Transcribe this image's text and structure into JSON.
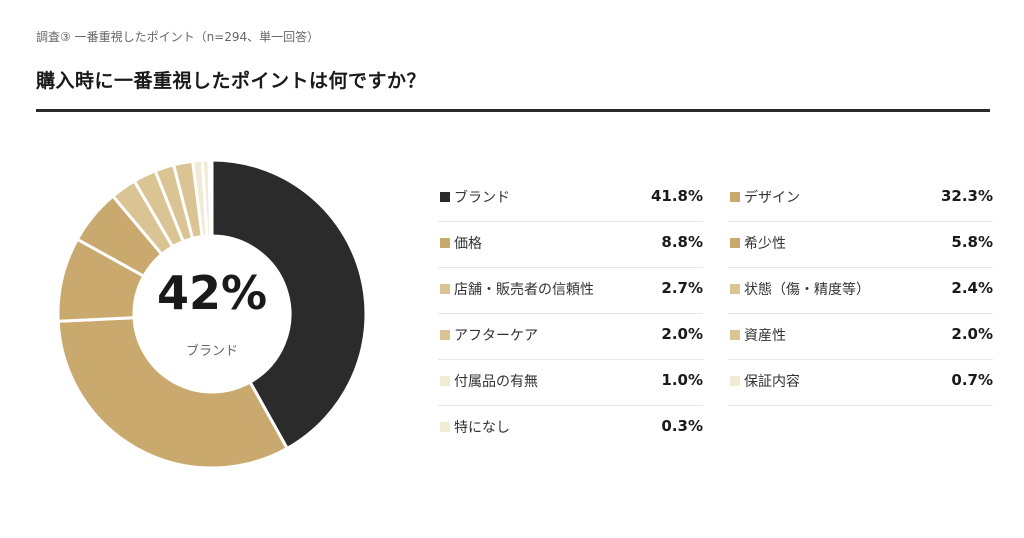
{
  "header": {
    "subtitle": "調査③ 一番重視したポイント（n=294、単一回答）",
    "title": "購入時に一番重視したポイントは何ですか？"
  },
  "center": {
    "value": "42%",
    "label": "ブランド"
  },
  "colors": {
    "dark": "#2b2b2b",
    "gold": "#c9a96e",
    "tan": "#dbc493",
    "beige": "#e8d9b5",
    "cream": "#f2ead2"
  },
  "chart_data": {
    "type": "pie",
    "categories": [
      "ブランド",
      "デザイン",
      "価格",
      "希少性",
      "店舗・販売者の信頼性",
      "状態（傷・精度等）",
      "アフターケア",
      "資産性",
      "付属品の有無",
      "保証内容",
      "特になし"
    ],
    "values": [
      41.8,
      32.3,
      8.8,
      5.8,
      2.7,
      2.4,
      2.0,
      2.0,
      1.0,
      0.7,
      0.3
    ],
    "labels": [
      "41.8%",
      "32.3%",
      "8.8%",
      "5.8%",
      "2.7%",
      "2.4%",
      "2.0%",
      "2.0%",
      "1.0%",
      "0.7%",
      "0.3%"
    ],
    "colors": [
      "#2b2b2b",
      "#c9a96e",
      "#c9a96e",
      "#c9a96e",
      "#dbc493",
      "#dbc493",
      "#dbc493",
      "#dbc493",
      "#f2ead2",
      "#f2ead2",
      "#f2ead2"
    ]
  }
}
